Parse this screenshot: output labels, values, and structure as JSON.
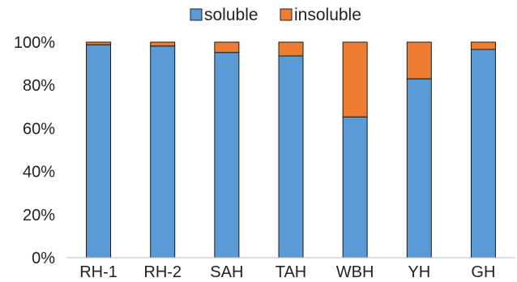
{
  "chart_data": {
    "type": "bar",
    "stacked": true,
    "categories": [
      "RH-1",
      "RH-2",
      "SAH",
      "TAH",
      "WBH",
      "YH",
      "GH"
    ],
    "series": [
      {
        "name": "soluble",
        "color": "#5b9bd5",
        "values": [
          98.8,
          98.2,
          95.2,
          93.6,
          65.3,
          83.0,
          96.6
        ]
      },
      {
        "name": "insoluble",
        "color": "#ed7d31",
        "values": [
          1.2,
          1.8,
          4.8,
          6.4,
          34.7,
          17.0,
          3.4
        ]
      }
    ],
    "ylim": [
      0,
      100
    ],
    "yticks": [
      "0%",
      "20%",
      "40%",
      "60%",
      "80%",
      "100%"
    ],
    "grid": false,
    "legend_position": "top-center",
    "xlabel": "",
    "ylabel": ""
  }
}
